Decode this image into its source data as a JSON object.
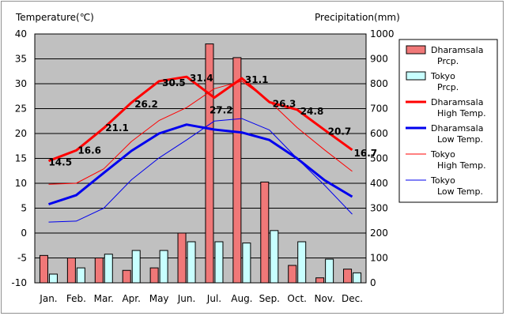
{
  "chart_data": {
    "type": "bar",
    "left_axis_title": "Temperature(℃)",
    "right_axis_title": "Precipitation(mm)",
    "categories": [
      "Jan.",
      "Feb.",
      "Mar.",
      "Apr.",
      "May",
      "Jun.",
      "Jul.",
      "Aug.",
      "Sep.",
      "Oct.",
      "Nov.",
      "Dec."
    ],
    "left_axis": {
      "min": -10,
      "max": 40,
      "step": 5
    },
    "right_axis": {
      "min": 0,
      "max": 1000,
      "step": 100
    },
    "grid": true,
    "legend_position": "right",
    "bar_series": [
      {
        "name": "Dharamsala Prcp.",
        "color": "#f07878",
        "values": [
          110,
          100,
          100,
          50,
          60,
          200,
          960,
          905,
          405,
          70,
          20,
          55
        ]
      },
      {
        "name": "Tokyo Prcp.",
        "color": "#c8ffff",
        "values": [
          35,
          60,
          115,
          130,
          130,
          165,
          165,
          160,
          210,
          165,
          95,
          40
        ]
      }
    ],
    "line_series": [
      {
        "name": "Dharamsala High Temp.",
        "color": "#ff0000",
        "width": 3,
        "values": [
          14.5,
          16.6,
          21.1,
          26.2,
          30.5,
          31.4,
          27.2,
          31.1,
          26.3,
          24.8,
          20.7,
          16.7
        ]
      },
      {
        "name": "Dharamsala Low Temp.",
        "color": "#0000ee",
        "width": 3,
        "values": [
          5.8,
          7.6,
          12.1,
          16.5,
          20.0,
          21.8,
          20.8,
          20.2,
          18.7,
          15.0,
          10.6,
          7.3
        ]
      },
      {
        "name": "Tokyo High Temp.",
        "color": "#ff0000",
        "width": 1,
        "values": [
          9.8,
          10.0,
          12.9,
          18.4,
          22.6,
          25.2,
          29.0,
          30.5,
          26.5,
          21.2,
          16.7,
          12.4
        ]
      },
      {
        "name": "Tokyo Low Temp.",
        "color": "#0000ee",
        "width": 1,
        "values": [
          2.2,
          2.4,
          5.0,
          10.7,
          15.1,
          18.7,
          22.5,
          23.0,
          20.7,
          15.0,
          9.6,
          3.8
        ]
      }
    ],
    "data_labels": [
      "14.5",
      "16.6",
      "21.1",
      "26.2",
      "30.5",
      "31.4",
      "27.2",
      "31.1",
      "26.3",
      "24.8",
      "20.7",
      "16.7"
    ],
    "legend": [
      {
        "line1": "Dharamsala",
        "line2": "Prcp.",
        "kind": "bar",
        "color": "#f07878"
      },
      {
        "line1": "Tokyo",
        "line2": "Prcp.",
        "kind": "bar",
        "color": "#c8ffff"
      },
      {
        "line1": "Dharamsala",
        "line2": "High Temp.",
        "kind": "line",
        "color": "#ff0000",
        "width": 3
      },
      {
        "line1": "Dharamsala",
        "line2": "Low Temp.",
        "kind": "line",
        "color": "#0000ee",
        "width": 3
      },
      {
        "line1": "Tokyo",
        "line2": "High Temp.",
        "kind": "line",
        "color": "#ff0000",
        "width": 1
      },
      {
        "line1": "Tokyo",
        "line2": "Low Temp.",
        "kind": "line",
        "color": "#0000ee",
        "width": 1
      }
    ],
    "plot_background": "#c0c0c0"
  }
}
